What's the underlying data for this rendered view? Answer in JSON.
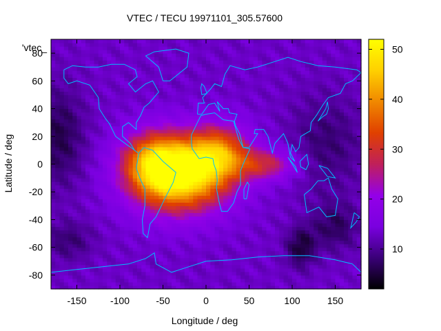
{
  "chart_data": {
    "type": "heatmap",
    "title": "VTEC / TECU 19971101_305.57600",
    "xlabel": "Longitude / deg",
    "ylabel": "Latitude / deg",
    "legend_entry": "'vtec_",
    "xlim": [
      -180,
      180
    ],
    "ylim": [
      -90,
      90
    ],
    "x_ticks": [
      -150,
      -100,
      -50,
      0,
      50,
      100,
      150
    ],
    "y_ticks": [
      80,
      60,
      40,
      20,
      0,
      -20,
      -40,
      -60,
      -80
    ],
    "colorbar": {
      "range": [
        2,
        52
      ],
      "ticks": [
        10,
        20,
        30,
        40,
        50
      ],
      "palette": [
        "#000000",
        "#3a0078",
        "#7a00e0",
        "#9400e8",
        "#c0205a",
        "#e04000",
        "#f08800",
        "#ffd000",
        "#ffff00"
      ]
    },
    "grid_resolution_deg": {
      "lon": 5,
      "lat": 2.5
    },
    "field_model": {
      "background": 13,
      "peaks": [
        {
          "lon": -30,
          "lat": -8,
          "amplitude": 37,
          "sigma_lon": 38,
          "sigma_lat": 18
        },
        {
          "lon": -60,
          "lat": 2,
          "amplitude": 20,
          "sigma_lon": 25,
          "sigma_lat": 15
        },
        {
          "lon": 15,
          "lat": 8,
          "amplitude": 22,
          "sigma_lon": 25,
          "sigma_lat": 14
        },
        {
          "lon": 70,
          "lat": 0,
          "amplitude": 14,
          "sigma_lon": 25,
          "sigma_lat": 8
        }
      ],
      "troughs": [
        {
          "lon": -170,
          "lat": 20,
          "depth": 7,
          "sigma_lon": 20,
          "sigma_lat": 25
        },
        {
          "lon": 140,
          "lat": 15,
          "depth": 5,
          "sigma_lon": 30,
          "sigma_lat": 25
        },
        {
          "lon": 110,
          "lat": -60,
          "depth": 8,
          "sigma_lon": 12,
          "sigma_lat": 10
        },
        {
          "lon": 150,
          "lat": -45,
          "depth": 6,
          "sigma_lon": 20,
          "sigma_lat": 12
        },
        {
          "lon": -160,
          "lat": -55,
          "depth": 5,
          "sigma_lon": 20,
          "sigma_lat": 10
        }
      ]
    },
    "coastline_color": "#00bfff"
  }
}
